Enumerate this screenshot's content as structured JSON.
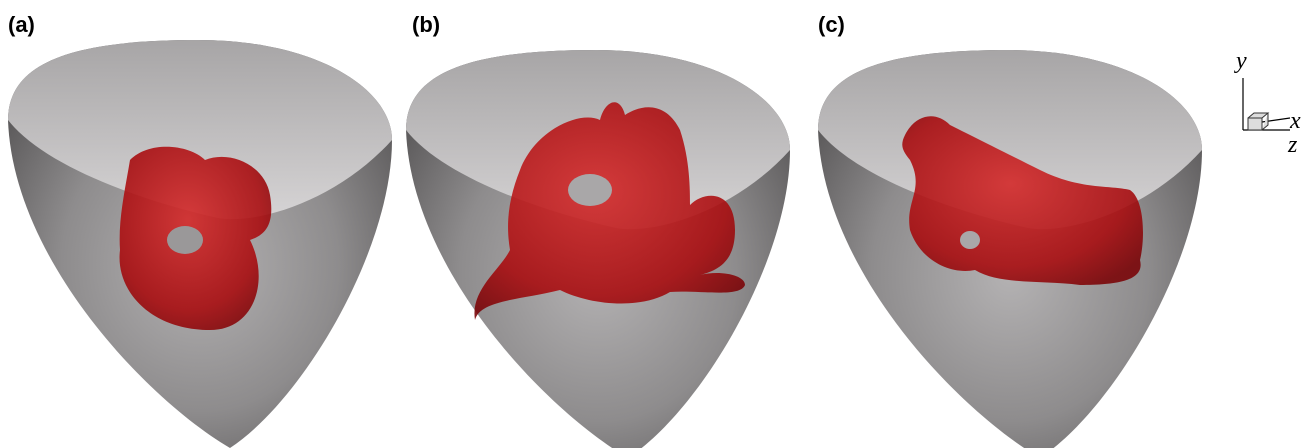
{
  "panels": [
    {
      "label": "(a)"
    },
    {
      "label": "(b)"
    },
    {
      "label": "(c)"
    }
  ],
  "axes": {
    "y": "y",
    "x": "x",
    "z": "z"
  }
}
